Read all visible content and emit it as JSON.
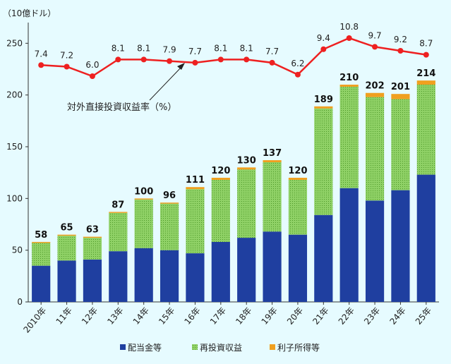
{
  "chart_data": {
    "type": "bar",
    "unit_label": "（10億ドル）",
    "categories": [
      "2010年",
      "11年",
      "12年",
      "13年",
      "14年",
      "15年",
      "16年",
      "17年",
      "18年",
      "19年",
      "20年",
      "21年",
      "22年",
      "23年",
      "24年",
      "25年"
    ],
    "series": [
      {
        "name": "配当金等",
        "values": [
          35,
          40,
          41,
          49,
          52,
          50,
          47,
          58,
          62,
          68,
          65,
          84,
          110,
          98,
          108,
          123
        ],
        "color": "#1f3fa0"
      },
      {
        "name": "再投資収益",
        "values": [
          22,
          24,
          21,
          37,
          47,
          45,
          62,
          60,
          66,
          67,
          53,
          103,
          98,
          100,
          88,
          87
        ],
        "color": "#8fd166"
      },
      {
        "name": "利子所得等",
        "values": [
          1,
          1,
          1,
          1,
          1,
          1,
          2,
          2,
          2,
          2,
          2,
          2,
          2,
          4,
          5,
          4
        ],
        "color": "#f0a020"
      }
    ],
    "totals": [
      "58",
      "65",
      "63",
      "87",
      "100",
      "96",
      "111",
      "120",
      "130",
      "137",
      "120",
      "189",
      "210",
      "202",
      "201",
      "214"
    ],
    "yticks": [
      "0",
      "50",
      "100",
      "150",
      "200",
      "250"
    ],
    "ylim": [
      0,
      270
    ],
    "line": {
      "name": "対外直接投資収益率（%）",
      "values": [
        7.4,
        7.2,
        6.0,
        8.1,
        8.1,
        7.9,
        7.7,
        8.1,
        8.1,
        7.7,
        6.2,
        9.4,
        10.8,
        9.7,
        9.2,
        8.7
      ],
      "labels": [
        "7.4",
        "7.2",
        "6.0",
        "8.1",
        "8.1",
        "7.9",
        "7.7",
        "8.1",
        "8.1",
        "7.7",
        "6.2",
        "9.4",
        "10.8",
        "9.7",
        "9.2",
        "8.7"
      ],
      "color": "#ee2020"
    },
    "annotation": "対外直接投資収益率（%）",
    "legend_position": "bottom"
  }
}
